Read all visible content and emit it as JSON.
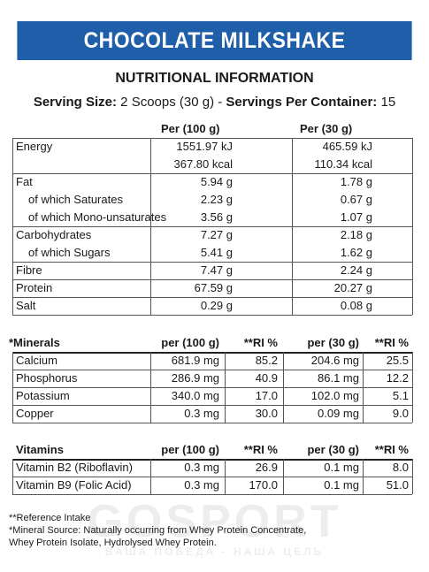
{
  "product_title": "CHOCOLATE MILKSHAKE",
  "heading": "NUTRITIONAL INFORMATION",
  "serving": {
    "size_label": "Serving Size:",
    "size_value": " 2 Scoops (30 g)  -  ",
    "servings_label": "Servings Per Container:",
    "servings_value": " 15"
  },
  "nutrition": {
    "headers": [
      "Per (100 g)",
      "Per  (30 g)"
    ],
    "rows": [
      {
        "name": "Energy",
        "per100": "1551.97 kJ",
        "per30": "465.59 kJ"
      },
      {
        "name": "",
        "per100": "367.80 kcal",
        "per30": "110.34 kcal"
      },
      {
        "name": "Fat",
        "per100": "5.94 g",
        "per30": "1.78 g"
      },
      {
        "name": "of which Saturates",
        "per100": "2.23 g",
        "per30": "0.67 g"
      },
      {
        "name": "of which Mono-unsaturates",
        "per100": "3.56 g",
        "per30": "1.07 g"
      },
      {
        "name": "Carbohydrates",
        "per100": "7.27 g",
        "per30": "2.18 g"
      },
      {
        "name": "of which Sugars",
        "per100": "5.41 g",
        "per30": "1.62 g"
      },
      {
        "name": "Fibre",
        "per100": "7.47 g",
        "per30": "2.24 g"
      },
      {
        "name": "Protein",
        "per100": "67.59 g",
        "per30": "20.27 g"
      },
      {
        "name": "Salt",
        "per100": "0.29 g",
        "per30": "0.08 g"
      }
    ]
  },
  "minerals": {
    "headers": [
      "*Minerals",
      "per (100 g)",
      "**RI %",
      "per (30 g)",
      "**RI %"
    ],
    "rows": [
      [
        "Calcium",
        "681.9 mg",
        "85.2",
        "204.6 mg",
        "25.5"
      ],
      [
        "Phosphorus",
        "286.9 mg",
        "40.9",
        "86.1 mg",
        "12.2"
      ],
      [
        "Potassium",
        "340.0 mg",
        "17.0",
        "102.0 mg",
        "5.1"
      ],
      [
        "Copper",
        "0.3 mg",
        "30.0",
        "0.09 mg",
        "9.0"
      ]
    ]
  },
  "vitamins": {
    "headers": [
      "Vitamins",
      "per (100 g)",
      "**RI %",
      "per (30 g)",
      "**RI %"
    ],
    "rows": [
      [
        "Vitamin B2 (Riboflavin)",
        "0.3 mg",
        "26.9",
        "0.1 mg",
        "8.0"
      ],
      [
        "Vitamin B9 (Folic Acid)",
        "0.3 mg",
        "170.0",
        "0.1 mg",
        "51.0"
      ]
    ]
  },
  "footnotes": [
    "**Reference Intake",
    " *Mineral Source: Naturally occurring from Whey Protein Concentrate,",
    "  Whey Protein Isolate, Hydrolysed Whey Protein."
  ],
  "watermark": {
    "brand": "GOSPORT",
    "tagline": "ВАША ПОБЕДА - НАША ЦЕЛЬ"
  }
}
